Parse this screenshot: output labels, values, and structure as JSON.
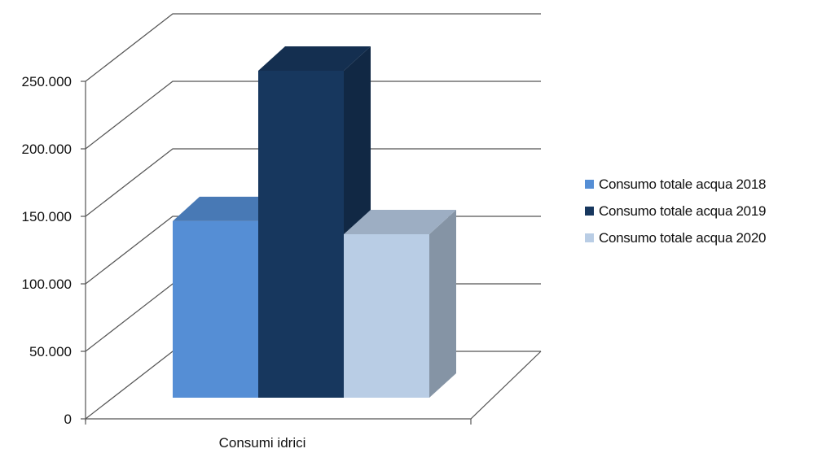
{
  "chart_data": {
    "type": "bar",
    "categories": [
      "Consumi idrici"
    ],
    "series": [
      {
        "name": "Consumo totale acqua 2018",
        "values": [
          135000
        ],
        "color": "#558ed5"
      },
      {
        "name": "Consumo totale acqua 2019",
        "values": [
          250000
        ],
        "color": "#17375e"
      },
      {
        "name": "Consumo totale acqua 2020",
        "values": [
          125000
        ],
        "color": "#b9cde5"
      }
    ],
    "ylim": [
      0,
      250000
    ],
    "yticks": [
      "0",
      "50.000",
      "100.000",
      "150.000",
      "200.000",
      "250.000"
    ],
    "ytick_values": [
      0,
      50000,
      100000,
      150000,
      200000,
      250000
    ],
    "grid": true,
    "legend_position": "right",
    "style": "3d"
  }
}
